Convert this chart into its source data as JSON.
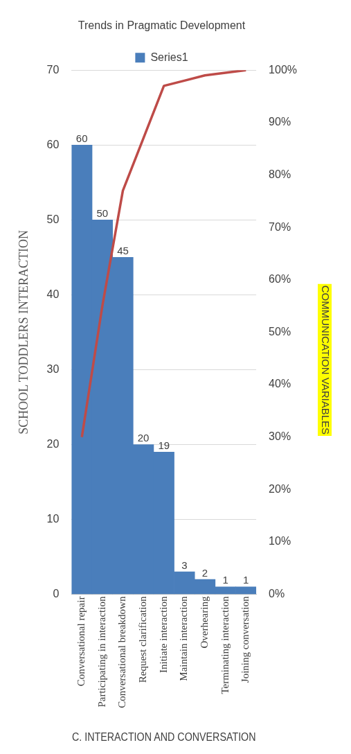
{
  "chart_data": {
    "type": "bar",
    "title": "Trends in Pragmatic Development",
    "xlabel": "C. INTERACTION AND CONVERSATION",
    "ylabel": "SCHOOL TODDLERS INTERACTION",
    "y2label": "COMMUNICATION VARIABLES",
    "categories": [
      "Conversational repair",
      "Participating in interaction",
      "Conversational breakdown",
      "Request clarification",
      "Initiate interaction",
      "Maintain interaction",
      "Overhearing",
      "Terminating interaction",
      "Joining conversation"
    ],
    "series": [
      {
        "name": "Series1",
        "color": "#4a7ebb",
        "values": [
          60,
          50,
          45,
          20,
          19,
          3,
          2,
          1,
          1
        ],
        "value_labels": [
          "60",
          "50",
          "45",
          "20",
          "19",
          "3",
          "2",
          "1",
          "1"
        ]
      },
      {
        "type": "line",
        "axis": "y2",
        "color": "#be4b48",
        "values": [
          30,
          55,
          77,
          87,
          97,
          98,
          99,
          99.5,
          100
        ]
      }
    ],
    "ylim": [
      0,
      70
    ],
    "yticks": [
      0,
      10,
      20,
      30,
      40,
      50,
      60,
      70
    ],
    "y2lim": [
      0,
      100
    ],
    "y2ticks": [
      {
        "value": 0,
        "label": "0%"
      },
      {
        "value": 10,
        "label": "10%"
      },
      {
        "value": 20,
        "label": "20%"
      },
      {
        "value": 30,
        "label": "30%"
      },
      {
        "value": 40,
        "label": "40%"
      },
      {
        "value": 50,
        "label": "50%"
      },
      {
        "value": 60,
        "label": "60%"
      },
      {
        "value": 70,
        "label": "70%"
      },
      {
        "value": 80,
        "label": "80%"
      },
      {
        "value": 90,
        "label": "90%"
      },
      {
        "value": 100,
        "label": "100%"
      }
    ],
    "grid": "y",
    "legend": "top",
    "marker": "none"
  }
}
